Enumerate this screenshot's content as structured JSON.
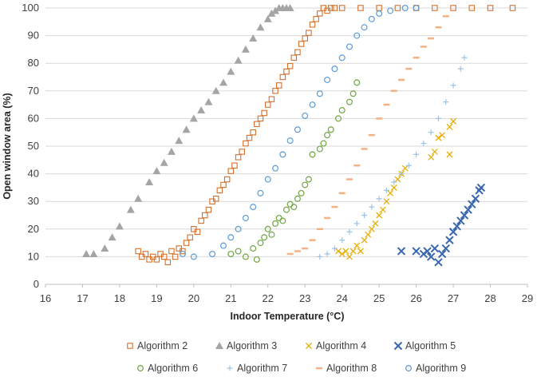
{
  "chart_data": {
    "type": "scatter",
    "xlabel": "Indoor Temperature (°C)",
    "ylabel": "Open window area (%)",
    "xlim": [
      16,
      29
    ],
    "ylim": [
      0,
      100
    ],
    "xticks": [
      16,
      17,
      18,
      19,
      20,
      21,
      22,
      23,
      24,
      25,
      26,
      27,
      28,
      29
    ],
    "yticks": [
      0,
      10,
      20,
      30,
      40,
      50,
      60,
      70,
      80,
      90,
      100
    ],
    "grid": "horizontal",
    "legend_position": "bottom",
    "series": [
      {
        "name": "Algorithm 2",
        "marker": "square-open",
        "color": "#D4702B",
        "points": [
          [
            18.5,
            12
          ],
          [
            18.6,
            10
          ],
          [
            18.7,
            11
          ],
          [
            18.8,
            9
          ],
          [
            18.9,
            10
          ],
          [
            19.0,
            9
          ],
          [
            19.1,
            11
          ],
          [
            19.2,
            10
          ],
          [
            19.3,
            8
          ],
          [
            19.4,
            12
          ],
          [
            19.5,
            10
          ],
          [
            19.6,
            13
          ],
          [
            19.7,
            12
          ],
          [
            19.8,
            15
          ],
          [
            19.9,
            17
          ],
          [
            20.0,
            20
          ],
          [
            20.1,
            19
          ],
          [
            20.2,
            23
          ],
          [
            20.3,
            25
          ],
          [
            20.4,
            27
          ],
          [
            20.5,
            30
          ],
          [
            20.6,
            31
          ],
          [
            20.7,
            34
          ],
          [
            20.8,
            36
          ],
          [
            20.9,
            38
          ],
          [
            21.0,
            41
          ],
          [
            21.1,
            43
          ],
          [
            21.2,
            46
          ],
          [
            21.3,
            48
          ],
          [
            21.4,
            51
          ],
          [
            21.5,
            53
          ],
          [
            21.6,
            55
          ],
          [
            21.7,
            58
          ],
          [
            21.8,
            60
          ],
          [
            21.9,
            62
          ],
          [
            22.0,
            65
          ],
          [
            22.1,
            67
          ],
          [
            22.2,
            70
          ],
          [
            22.3,
            72
          ],
          [
            22.4,
            75
          ],
          [
            22.5,
            77
          ],
          [
            22.6,
            79
          ],
          [
            22.7,
            82
          ],
          [
            22.8,
            84
          ],
          [
            22.9,
            87
          ],
          [
            23.0,
            89
          ],
          [
            23.1,
            91
          ],
          [
            23.2,
            94
          ],
          [
            23.3,
            96
          ],
          [
            23.4,
            98
          ],
          [
            23.5,
            100
          ],
          [
            23.6,
            99
          ],
          [
            23.7,
            100
          ],
          [
            23.8,
            100
          ],
          [
            24.0,
            100
          ],
          [
            24.5,
            100
          ],
          [
            25.0,
            100
          ],
          [
            25.5,
            100
          ],
          [
            26.0,
            100
          ],
          [
            26.5,
            100
          ],
          [
            27.0,
            100
          ],
          [
            27.5,
            100
          ],
          [
            28.0,
            100
          ],
          [
            28.6,
            100
          ]
        ]
      },
      {
        "name": "Algorithm 3",
        "marker": "triangle-filled",
        "color": "#A5A5A5",
        "points": [
          [
            17.1,
            11
          ],
          [
            17.3,
            11
          ],
          [
            17.6,
            13
          ],
          [
            17.8,
            17
          ],
          [
            18.0,
            21
          ],
          [
            18.3,
            27
          ],
          [
            18.5,
            31
          ],
          [
            18.8,
            37
          ],
          [
            19.0,
            41
          ],
          [
            19.2,
            44
          ],
          [
            19.4,
            48
          ],
          [
            19.6,
            52
          ],
          [
            19.8,
            56
          ],
          [
            20.0,
            60
          ],
          [
            20.2,
            63
          ],
          [
            20.4,
            66
          ],
          [
            20.6,
            70
          ],
          [
            20.8,
            73
          ],
          [
            21.0,
            77
          ],
          [
            21.2,
            81
          ],
          [
            21.4,
            85
          ],
          [
            21.6,
            89
          ],
          [
            21.8,
            93
          ],
          [
            22.0,
            96
          ],
          [
            22.1,
            98
          ],
          [
            22.2,
            99
          ],
          [
            22.3,
            100
          ],
          [
            22.4,
            100
          ],
          [
            22.5,
            100
          ],
          [
            22.6,
            100
          ]
        ]
      },
      {
        "name": "Algorithm 4",
        "marker": "x",
        "color": "#E8AE07",
        "points": [
          [
            23.9,
            12
          ],
          [
            24.0,
            11
          ],
          [
            24.1,
            12
          ],
          [
            24.2,
            10
          ],
          [
            24.3,
            12
          ],
          [
            24.4,
            14
          ],
          [
            24.5,
            12
          ],
          [
            24.6,
            16
          ],
          [
            24.7,
            18
          ],
          [
            24.8,
            20
          ],
          [
            24.9,
            22
          ],
          [
            25.0,
            25
          ],
          [
            25.1,
            27
          ],
          [
            25.2,
            30
          ],
          [
            25.3,
            33
          ],
          [
            25.4,
            35
          ],
          [
            25.5,
            38
          ],
          [
            25.6,
            40
          ],
          [
            25.7,
            42
          ],
          [
            26.4,
            46
          ],
          [
            26.5,
            48
          ],
          [
            26.6,
            53
          ],
          [
            26.7,
            54
          ],
          [
            26.9,
            47
          ],
          [
            26.9,
            57
          ],
          [
            27.0,
            59
          ]
        ]
      },
      {
        "name": "Algorithm 5",
        "marker": "x-bold",
        "color": "#3A67AF",
        "points": [
          [
            25.6,
            12
          ],
          [
            26.0,
            12
          ],
          [
            26.2,
            11
          ],
          [
            26.3,
            12
          ],
          [
            26.4,
            10
          ],
          [
            26.5,
            13
          ],
          [
            26.6,
            8
          ],
          [
            26.7,
            11
          ],
          [
            26.8,
            13
          ],
          [
            26.9,
            16
          ],
          [
            27.0,
            19
          ],
          [
            27.1,
            21
          ],
          [
            27.2,
            23
          ],
          [
            27.3,
            25
          ],
          [
            27.4,
            27
          ],
          [
            27.5,
            29
          ],
          [
            27.6,
            31
          ],
          [
            27.7,
            34
          ],
          [
            27.75,
            35
          ]
        ]
      },
      {
        "name": "Algorithm 6",
        "marker": "circle-open",
        "color": "#70A542",
        "points": [
          [
            21.0,
            11
          ],
          [
            21.2,
            12
          ],
          [
            21.4,
            10
          ],
          [
            21.6,
            13
          ],
          [
            21.7,
            9
          ],
          [
            21.8,
            15
          ],
          [
            21.9,
            17
          ],
          [
            22.0,
            20
          ],
          [
            22.1,
            18
          ],
          [
            22.2,
            22
          ],
          [
            22.3,
            24
          ],
          [
            22.4,
            23
          ],
          [
            22.5,
            27
          ],
          [
            22.6,
            29
          ],
          [
            22.7,
            28
          ],
          [
            22.8,
            31
          ],
          [
            22.9,
            33
          ],
          [
            23.0,
            36
          ],
          [
            23.1,
            38
          ],
          [
            23.2,
            47
          ],
          [
            23.4,
            49
          ],
          [
            23.5,
            51
          ],
          [
            23.6,
            54
          ],
          [
            23.7,
            56
          ],
          [
            23.9,
            60
          ],
          [
            24.0,
            63
          ],
          [
            24.2,
            66
          ],
          [
            24.3,
            69
          ],
          [
            24.4,
            73
          ]
        ]
      },
      {
        "name": "Algorithm 7",
        "marker": "plus",
        "color": "#9DC3E6",
        "points": [
          [
            23.4,
            10
          ],
          [
            23.6,
            11
          ],
          [
            23.8,
            13
          ],
          [
            24.0,
            16
          ],
          [
            24.2,
            19
          ],
          [
            24.4,
            22
          ],
          [
            24.6,
            25
          ],
          [
            24.8,
            28
          ],
          [
            25.0,
            31
          ],
          [
            25.2,
            34
          ],
          [
            25.4,
            37
          ],
          [
            25.6,
            40
          ],
          [
            25.8,
            43
          ],
          [
            26.0,
            47
          ],
          [
            26.2,
            51
          ],
          [
            26.4,
            55
          ],
          [
            26.6,
            60
          ],
          [
            26.8,
            66
          ],
          [
            27.0,
            72
          ],
          [
            27.2,
            78
          ],
          [
            27.3,
            82
          ]
        ]
      },
      {
        "name": "Algorithm 8",
        "marker": "dash",
        "color": "#F4B183",
        "points": [
          [
            22.6,
            11
          ],
          [
            22.8,
            12
          ],
          [
            23.0,
            13
          ],
          [
            23.2,
            16
          ],
          [
            23.4,
            20
          ],
          [
            23.6,
            24
          ],
          [
            23.8,
            28
          ],
          [
            24.0,
            33
          ],
          [
            24.2,
            38
          ],
          [
            24.4,
            43
          ],
          [
            24.6,
            49
          ],
          [
            24.8,
            54
          ],
          [
            25.0,
            60
          ],
          [
            25.2,
            65
          ],
          [
            25.4,
            70
          ],
          [
            25.6,
            74
          ],
          [
            25.8,
            78
          ],
          [
            26.0,
            82
          ],
          [
            26.2,
            86
          ],
          [
            26.4,
            89
          ],
          [
            26.6,
            93
          ],
          [
            26.8,
            97
          ]
        ]
      },
      {
        "name": "Algorithm 9",
        "marker": "circle-open",
        "color": "#5B9BD5",
        "points": [
          [
            19.7,
            11
          ],
          [
            20.0,
            10
          ],
          [
            20.5,
            11
          ],
          [
            20.8,
            14
          ],
          [
            21.0,
            17
          ],
          [
            21.2,
            20
          ],
          [
            21.4,
            24
          ],
          [
            21.6,
            28
          ],
          [
            21.8,
            33
          ],
          [
            22.0,
            38
          ],
          [
            22.2,
            42
          ],
          [
            22.4,
            47
          ],
          [
            22.6,
            52
          ],
          [
            22.8,
            56
          ],
          [
            23.0,
            61
          ],
          [
            23.2,
            65
          ],
          [
            23.4,
            69
          ],
          [
            23.6,
            74
          ],
          [
            23.8,
            78
          ],
          [
            24.0,
            82
          ],
          [
            24.2,
            86
          ],
          [
            24.4,
            90
          ],
          [
            24.6,
            93
          ],
          [
            24.8,
            96
          ],
          [
            25.0,
            98
          ],
          [
            25.3,
            99
          ],
          [
            25.7,
            100
          ],
          [
            26.0,
            100
          ]
        ]
      }
    ]
  }
}
